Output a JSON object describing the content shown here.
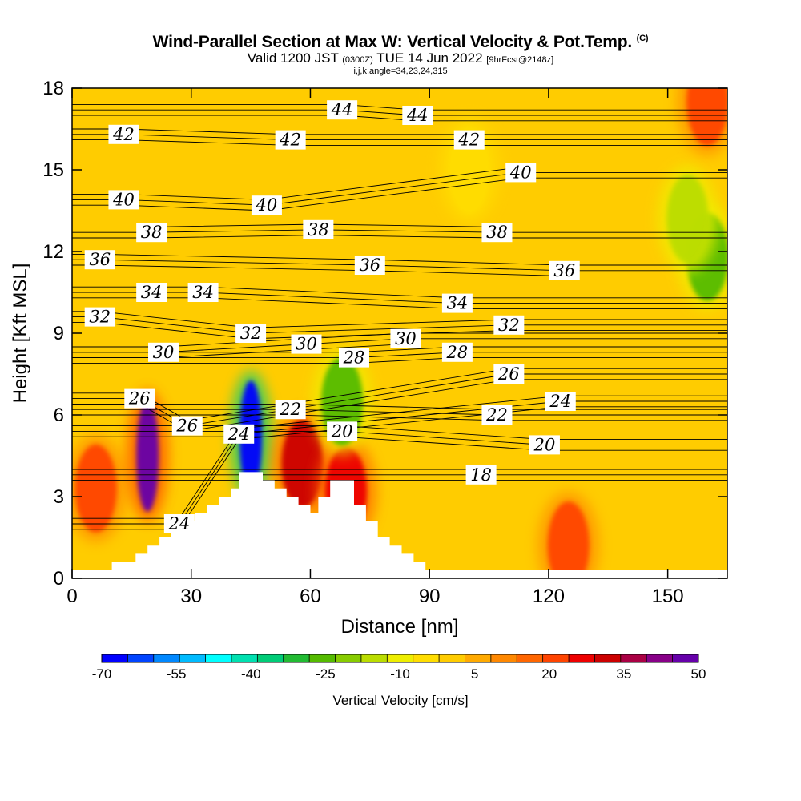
{
  "header": {
    "title": "Wind-Parallel Section at Max W: Vertical Velocity & Pot.Temp.",
    "title_mark": "(C)",
    "valid_prefix": "Valid 1200 JST",
    "valid_utc": "(0300Z)",
    "valid_date": "TUE 14 Jun 2022",
    "forecast_info": "[9hrFcst@2148z]",
    "indices": "i,j,k,angle=34,23,24,315"
  },
  "chart_data": {
    "type": "heatmap",
    "xlabel": "Distance [nm]",
    "ylabel": "Height [Kft MSL]",
    "xlim": [
      0,
      165
    ],
    "ylim": [
      0,
      18
    ],
    "x_ticks": [
      "0",
      "30",
      "60",
      "90",
      "120",
      "150"
    ],
    "y_ticks": [
      "0",
      "3",
      "6",
      "9",
      "12",
      "15",
      "18"
    ],
    "terrain_profile": {
      "x": [
        0,
        10,
        10,
        16,
        16,
        19,
        19,
        22,
        22,
        25,
        25,
        28,
        28,
        31,
        31,
        34,
        34,
        37,
        37,
        40,
        40,
        42,
        42,
        48,
        48,
        51,
        51,
        54,
        54,
        57,
        57,
        60,
        60,
        62,
        62,
        65,
        65,
        71,
        71,
        74,
        74,
        77,
        77,
        80,
        80,
        83,
        83,
        86,
        86,
        89,
        89,
        165
      ],
      "kft": [
        0.3,
        0.3,
        0.6,
        0.6,
        0.9,
        0.9,
        1.2,
        1.2,
        1.5,
        1.5,
        1.8,
        1.8,
        2.1,
        2.1,
        2.4,
        2.4,
        2.7,
        2.7,
        3.0,
        3.0,
        3.3,
        3.3,
        3.9,
        3.9,
        3.6,
        3.6,
        3.3,
        3.3,
        3.0,
        3.0,
        2.7,
        2.7,
        2.4,
        2.4,
        3.0,
        3.0,
        3.6,
        3.6,
        2.7,
        2.7,
        2.1,
        2.1,
        1.5,
        1.5,
        1.2,
        1.2,
        0.9,
        0.9,
        0.6,
        0.6,
        0.3,
        0.3
      ]
    },
    "vertical_velocity_features": [
      {
        "x": 6,
        "kft": 3.3,
        "value": 25
      },
      {
        "x": 19,
        "kft": 4.5,
        "value": 50
      },
      {
        "x": 45,
        "kft": 5.2,
        "value": -70
      },
      {
        "x": 58,
        "kft": 4.2,
        "value": 35
      },
      {
        "x": 69,
        "kft": 3.2,
        "value": 30
      },
      {
        "x": 68,
        "kft": 6.5,
        "value": -25
      },
      {
        "x": 160,
        "kft": 11.8,
        "value": -25
      },
      {
        "x": 155,
        "kft": 13.2,
        "value": -15
      },
      {
        "x": 125,
        "kft": 1.2,
        "value": 20
      },
      {
        "x": 100,
        "kft": 15.0,
        "value": -5
      },
      {
        "x": 160,
        "kft": 17.5,
        "value": 20
      }
    ],
    "potential_temperature_labels": [
      {
        "text": "44",
        "x": 68,
        "kft": 17.2
      },
      {
        "text": "44",
        "x": 87,
        "kft": 17.0
      },
      {
        "text": "42",
        "x": 13,
        "kft": 16.3
      },
      {
        "text": "42",
        "x": 55,
        "kft": 16.1
      },
      {
        "text": "42",
        "x": 100,
        "kft": 16.1
      },
      {
        "text": "40",
        "x": 113,
        "kft": 14.9
      },
      {
        "text": "40",
        "x": 13,
        "kft": 13.9
      },
      {
        "text": "40",
        "x": 49,
        "kft": 13.7
      },
      {
        "text": "38",
        "x": 20,
        "kft": 12.7
      },
      {
        "text": "38",
        "x": 62,
        "kft": 12.8
      },
      {
        "text": "38",
        "x": 107,
        "kft": 12.7
      },
      {
        "text": "36",
        "x": 7,
        "kft": 11.7
      },
      {
        "text": "36",
        "x": 75,
        "kft": 11.5
      },
      {
        "text": "36",
        "x": 124,
        "kft": 11.3
      },
      {
        "text": "34",
        "x": 20,
        "kft": 10.5
      },
      {
        "text": "34",
        "x": 33,
        "kft": 10.5
      },
      {
        "text": "34",
        "x": 97,
        "kft": 10.1
      },
      {
        "text": "32",
        "x": 7,
        "kft": 9.6
      },
      {
        "text": "32",
        "x": 45,
        "kft": 9.0
      },
      {
        "text": "32",
        "x": 110,
        "kft": 9.3
      },
      {
        "text": "30",
        "x": 23,
        "kft": 8.3
      },
      {
        "text": "30",
        "x": 59,
        "kft": 8.6
      },
      {
        "text": "30",
        "x": 84,
        "kft": 8.8
      },
      {
        "text": "28",
        "x": 71,
        "kft": 8.1
      },
      {
        "text": "28",
        "x": 97,
        "kft": 8.3
      },
      {
        "text": "26",
        "x": 17,
        "kft": 6.6
      },
      {
        "text": "26",
        "x": 29,
        "kft": 5.6
      },
      {
        "text": "26",
        "x": 110,
        "kft": 7.5
      },
      {
        "text": "24",
        "x": 42,
        "kft": 5.3
      },
      {
        "text": "24",
        "x": 123,
        "kft": 6.5
      },
      {
        "text": "24",
        "x": 27,
        "kft": 2.0
      },
      {
        "text": "22",
        "x": 55,
        "kft": 6.2
      },
      {
        "text": "22",
        "x": 107,
        "kft": 6.0
      },
      {
        "text": "20",
        "x": 68,
        "kft": 5.4
      },
      {
        "text": "20",
        "x": 119,
        "kft": 4.9
      },
      {
        "text": "18",
        "x": 103,
        "kft": 3.8
      }
    ]
  },
  "colorbar": {
    "label": "Vertical Velocity [cm/s]",
    "tick_labels": [
      "-70",
      "-55",
      "-40",
      "-25",
      "-10",
      "5",
      "20",
      "35",
      "50"
    ],
    "colors": [
      "#0000ff",
      "#0044ff",
      "#0088ff",
      "#00bbff",
      "#00ffff",
      "#00e0b0",
      "#00cc77",
      "#22bb33",
      "#55bb00",
      "#88cc00",
      "#bbdd00",
      "#eeee00",
      "#ffdd00",
      "#ffcc00",
      "#ffaa00",
      "#ff8800",
      "#ff6600",
      "#ff4400",
      "#ee0000",
      "#cc0000",
      "#aa0044",
      "#880088",
      "#6600aa"
    ]
  }
}
